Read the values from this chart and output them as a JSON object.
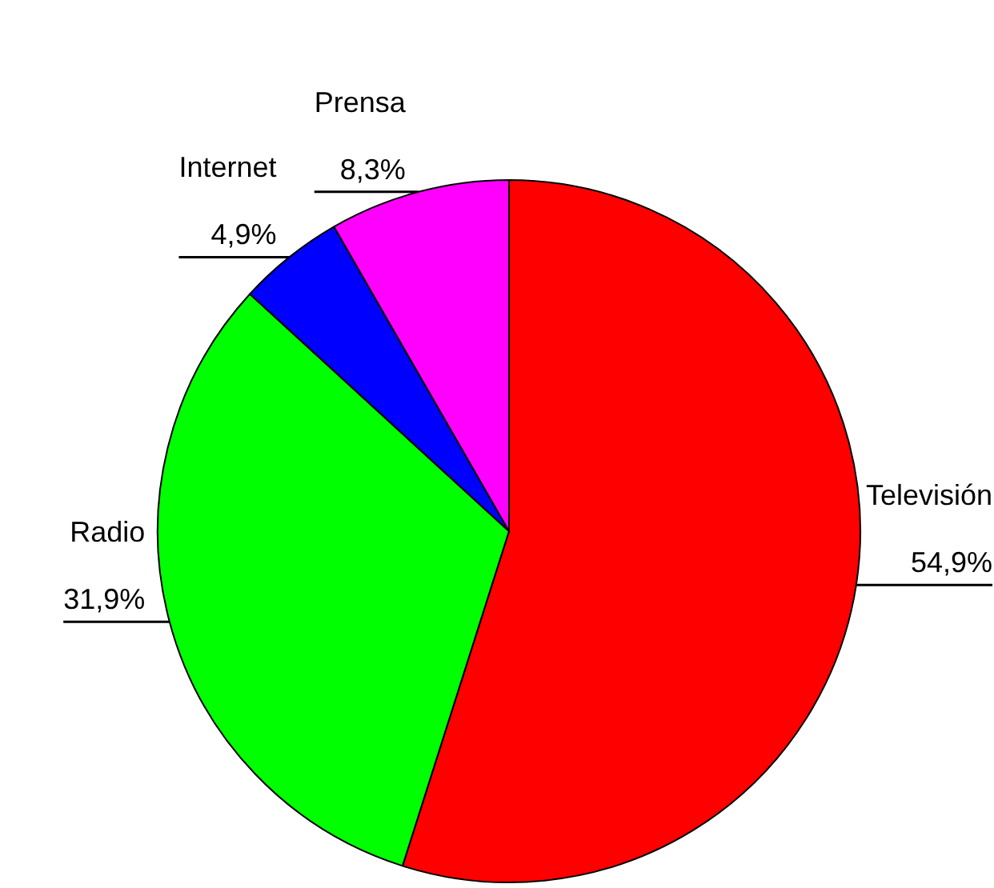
{
  "chart_data": {
    "type": "pie",
    "categories": [
      "Televisión",
      "Radio",
      "Internet",
      "Prensa"
    ],
    "values": [
      54.9,
      31.9,
      4.9,
      8.3
    ],
    "colors": [
      "#ff0000",
      "#00ff00",
      "#0000ff",
      "#ff00ff"
    ],
    "value_labels": [
      "54,9%",
      "31,9%",
      "4,9%",
      "8,3%"
    ]
  }
}
